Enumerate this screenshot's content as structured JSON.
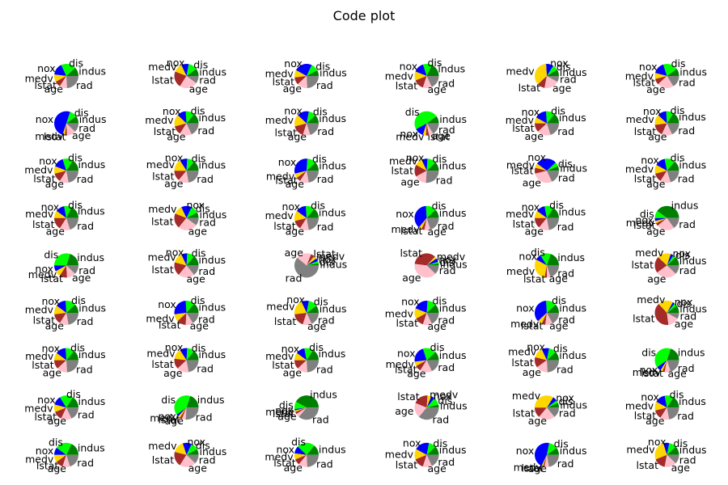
{
  "title": "Code plot",
  "chart_data": {
    "type": "pie",
    "title": "Code plot",
    "grid": {
      "rows": 9,
      "cols": 6
    },
    "categories": [
      "indus",
      "dis",
      "nox",
      "medv",
      "lstat",
      "age",
      "rad"
    ],
    "colors": {
      "indus": "#008000",
      "dis": "#00ff00",
      "nox": "#0000ff",
      "medv": "#ffd700",
      "lstat": "#a52a2a",
      "age": "#ffc0cb",
      "rad": "#808080"
    },
    "pies": [
      {
        "values": [
          0.12,
          0.2,
          0.16,
          0.1,
          0.08,
          0.1,
          0.24
        ]
      },
      {
        "values": [
          0.1,
          0.12,
          0.1,
          0.12,
          0.22,
          0.24,
          0.1
        ]
      },
      {
        "values": [
          0.08,
          0.1,
          0.24,
          0.1,
          0.1,
          0.14,
          0.24
        ]
      },
      {
        "values": [
          0.18,
          0.12,
          0.14,
          0.12,
          0.14,
          0.12,
          0.18
        ]
      },
      {
        "values": [
          0.09,
          0.07,
          0.1,
          0.36,
          0.1,
          0.2,
          0.08
        ]
      },
      {
        "values": [
          0.1,
          0.2,
          0.16,
          0.08,
          0.08,
          0.22,
          0.16
        ]
      },
      {
        "values": [
          0.1,
          0.1,
          0.5,
          0.03,
          0.03,
          0.12,
          0.12
        ]
      },
      {
        "values": [
          0.14,
          0.12,
          0.12,
          0.16,
          0.12,
          0.16,
          0.18
        ]
      },
      {
        "values": [
          0.12,
          0.1,
          0.16,
          0.16,
          0.16,
          0.1,
          0.2
        ]
      },
      {
        "values": [
          0.1,
          0.48,
          0.12,
          0.04,
          0.04,
          0.06,
          0.16
        ]
      },
      {
        "values": [
          0.14,
          0.12,
          0.16,
          0.08,
          0.12,
          0.18,
          0.2
        ]
      },
      {
        "values": [
          0.16,
          0.1,
          0.12,
          0.14,
          0.16,
          0.14,
          0.18
        ]
      },
      {
        "values": [
          0.16,
          0.14,
          0.14,
          0.1,
          0.12,
          0.12,
          0.22
        ]
      },
      {
        "values": [
          0.14,
          0.1,
          0.1,
          0.16,
          0.14,
          0.14,
          0.22
        ]
      },
      {
        "values": [
          0.12,
          0.12,
          0.3,
          0.06,
          0.06,
          0.12,
          0.22
        ]
      },
      {
        "values": [
          0.12,
          0.12,
          0.08,
          0.1,
          0.16,
          0.16,
          0.26
        ]
      },
      {
        "values": [
          0.06,
          0.06,
          0.28,
          0.06,
          0.08,
          0.28,
          0.18
        ]
      },
      {
        "values": [
          0.14,
          0.14,
          0.14,
          0.12,
          0.12,
          0.14,
          0.2
        ]
      },
      {
        "values": [
          0.18,
          0.1,
          0.12,
          0.1,
          0.16,
          0.14,
          0.2
        ]
      },
      {
        "values": [
          0.08,
          0.1,
          0.14,
          0.12,
          0.2,
          0.26,
          0.1
        ]
      },
      {
        "values": [
          0.14,
          0.12,
          0.14,
          0.14,
          0.12,
          0.12,
          0.22
        ]
      },
      {
        "values": [
          0.12,
          0.14,
          0.38,
          0.04,
          0.04,
          0.08,
          0.2
        ]
      },
      {
        "values": [
          0.16,
          0.12,
          0.12,
          0.1,
          0.14,
          0.14,
          0.22
        ]
      },
      {
        "values": [
          0.4,
          0.1,
          0.04,
          0.03,
          0.04,
          0.24,
          0.15
        ]
      },
      {
        "values": [
          0.2,
          0.3,
          0.08,
          0.08,
          0.1,
          0.12,
          0.12
        ]
      },
      {
        "values": [
          0.14,
          0.1,
          0.08,
          0.14,
          0.18,
          0.22,
          0.14
        ]
      },
      {
        "values": [
          0.03,
          0.03,
          0.04,
          0.04,
          0.05,
          0.2,
          0.61
        ]
      },
      {
        "values": [
          0.03,
          0.02,
          0.05,
          0.03,
          0.35,
          0.4,
          0.12
        ]
      },
      {
        "values": [
          0.2,
          0.14,
          0.08,
          0.3,
          0.03,
          0.05,
          0.2
        ]
      },
      {
        "values": [
          0.12,
          0.04,
          0.04,
          0.18,
          0.22,
          0.28,
          0.12
        ]
      },
      {
        "values": [
          0.12,
          0.14,
          0.14,
          0.12,
          0.14,
          0.12,
          0.22
        ]
      },
      {
        "values": [
          0.14,
          0.12,
          0.26,
          0.1,
          0.12,
          0.1,
          0.16
        ]
      },
      {
        "values": [
          0.1,
          0.12,
          0.1,
          0.2,
          0.18,
          0.12,
          0.18
        ]
      },
      {
        "values": [
          0.12,
          0.12,
          0.2,
          0.14,
          0.12,
          0.12,
          0.18
        ]
      },
      {
        "values": [
          0.12,
          0.14,
          0.36,
          0.06,
          0.05,
          0.1,
          0.17
        ]
      },
      {
        "values": [
          0.1,
          0.04,
          0.03,
          0.2,
          0.4,
          0.15,
          0.08
        ]
      },
      {
        "values": [
          0.14,
          0.12,
          0.14,
          0.1,
          0.12,
          0.14,
          0.24
        ]
      },
      {
        "values": [
          0.14,
          0.1,
          0.1,
          0.14,
          0.14,
          0.16,
          0.22
        ]
      },
      {
        "values": [
          0.16,
          0.12,
          0.12,
          0.1,
          0.12,
          0.14,
          0.24
        ]
      },
      {
        "values": [
          0.12,
          0.18,
          0.22,
          0.06,
          0.08,
          0.16,
          0.18
        ]
      },
      {
        "values": [
          0.12,
          0.1,
          0.1,
          0.14,
          0.14,
          0.16,
          0.24
        ]
      },
      {
        "values": [
          0.2,
          0.4,
          0.06,
          0.03,
          0.03,
          0.08,
          0.2
        ]
      },
      {
        "values": [
          0.16,
          0.18,
          0.12,
          0.1,
          0.12,
          0.14,
          0.18
        ]
      },
      {
        "values": [
          0.2,
          0.4,
          0.03,
          0.03,
          0.03,
          0.05,
          0.26
        ]
      },
      {
        "values": [
          0.42,
          0.1,
          0.02,
          0.02,
          0.03,
          0.05,
          0.36
        ]
      },
      {
        "values": [
          0.04,
          0.1,
          0.05,
          0.05,
          0.2,
          0.2,
          0.36
        ]
      },
      {
        "values": [
          0.06,
          0.04,
          0.06,
          0.34,
          0.14,
          0.22,
          0.14
        ]
      },
      {
        "values": [
          0.16,
          0.12,
          0.14,
          0.12,
          0.12,
          0.12,
          0.22
        ]
      },
      {
        "values": [
          0.18,
          0.22,
          0.1,
          0.1,
          0.1,
          0.1,
          0.2
        ]
      },
      {
        "values": [
          0.08,
          0.1,
          0.12,
          0.16,
          0.2,
          0.22,
          0.12
        ]
      },
      {
        "values": [
          0.14,
          0.24,
          0.1,
          0.08,
          0.08,
          0.12,
          0.24
        ]
      },
      {
        "values": [
          0.12,
          0.1,
          0.2,
          0.14,
          0.14,
          0.12,
          0.18
        ]
      },
      {
        "values": [
          0.1,
          0.12,
          0.46,
          0.02,
          0.02,
          0.06,
          0.22
        ]
      },
      {
        "values": [
          0.12,
          0.1,
          0.08,
          0.26,
          0.16,
          0.16,
          0.12
        ]
      }
    ]
  }
}
